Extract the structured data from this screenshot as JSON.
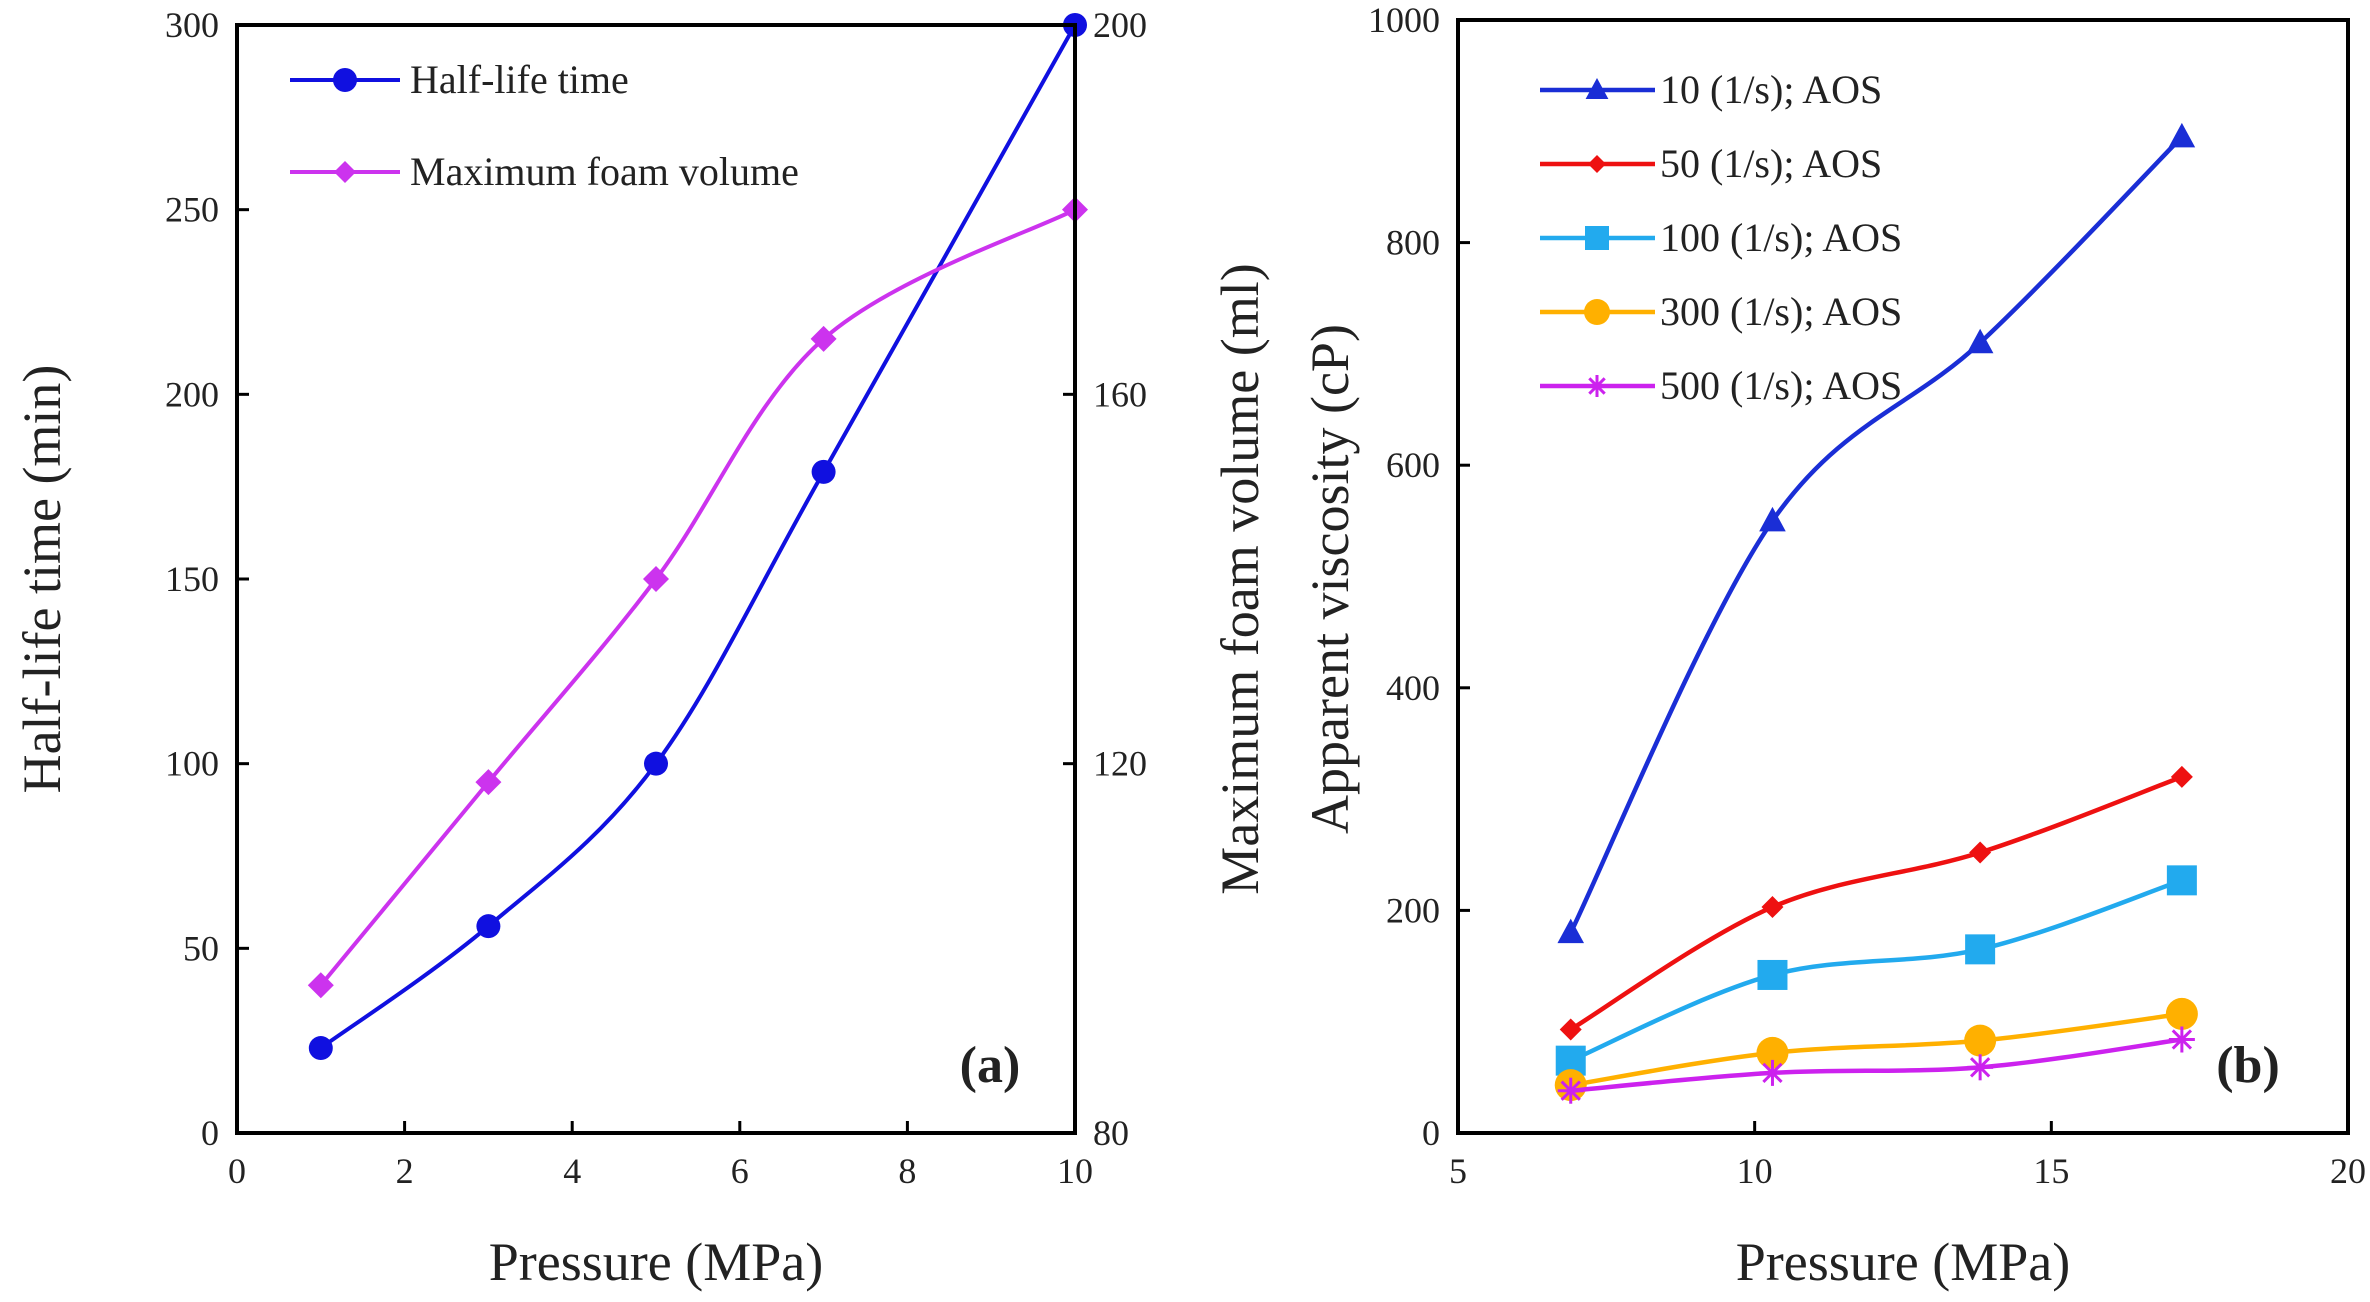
{
  "chart_data": [
    {
      "type": "line",
      "panel_label": "(a)",
      "xlabel": "Pressure (MPa)",
      "ylabel": "Half-life time (min)",
      "ylabel_right": "Maximum foam volume (ml)",
      "xlim": [
        0,
        10
      ],
      "ylim": [
        0,
        300
      ],
      "ylim_right": [
        80,
        200
      ],
      "x_ticks": [
        0,
        2,
        4,
        6,
        8,
        10
      ],
      "y_ticks": [
        0,
        50,
        100,
        150,
        200,
        250,
        300
      ],
      "y_right_ticks": [
        80,
        120,
        160,
        200
      ],
      "legend_position": "top-left",
      "grid": false,
      "series": [
        {
          "name": "Half-life time",
          "axis": "left",
          "color": "#1010e0",
          "marker": "circle",
          "x": [
            1,
            3,
            5,
            7,
            10
          ],
          "y": [
            23,
            56,
            100,
            179,
            300
          ]
        },
        {
          "name": "Maximum foam volume",
          "axis": "right",
          "color": "#cc33ee",
          "marker": "diamond",
          "x": [
            1,
            3,
            5,
            7,
            10
          ],
          "y": [
            96,
            118,
            140,
            166,
            180
          ]
        }
      ]
    },
    {
      "type": "line",
      "panel_label": "(b)",
      "xlabel": "Pressure (MPa)",
      "ylabel": "Apparent viscosity (cP)",
      "xlim": [
        5,
        20
      ],
      "ylim": [
        0,
        1000
      ],
      "x_ticks": [
        5,
        10,
        15,
        20
      ],
      "y_ticks": [
        0,
        200,
        400,
        600,
        800,
        1000
      ],
      "legend_position": "top-left",
      "grid": false,
      "series": [
        {
          "name": "10 (1/s); AOS",
          "color": "#1a2ed6",
          "marker": "triangle",
          "x": [
            6.9,
            10.3,
            13.8,
            17.2
          ],
          "y": [
            180,
            550,
            710,
            895
          ]
        },
        {
          "name": "50 (1/s); AOS",
          "color": "#ee1111",
          "marker": "diamond",
          "x": [
            6.9,
            10.3,
            13.8,
            17.2
          ],
          "y": [
            93,
            203,
            252,
            320
          ]
        },
        {
          "name": "100 (1/s); AOS",
          "color": "#22aaee",
          "marker": "square",
          "x": [
            6.9,
            10.3,
            13.8,
            17.2
          ],
          "y": [
            65,
            142,
            165,
            227
          ]
        },
        {
          "name": "300 (1/s); AOS",
          "color": "#ffb000",
          "marker": "circle",
          "x": [
            6.9,
            10.3,
            13.8,
            17.2
          ],
          "y": [
            43,
            72,
            83,
            107
          ]
        },
        {
          "name": "500 (1/s); AOS",
          "color": "#cc22ee",
          "marker": "star",
          "x": [
            6.9,
            10.3,
            13.8,
            17.2
          ],
          "y": [
            38,
            54,
            59,
            84
          ]
        }
      ]
    }
  ]
}
